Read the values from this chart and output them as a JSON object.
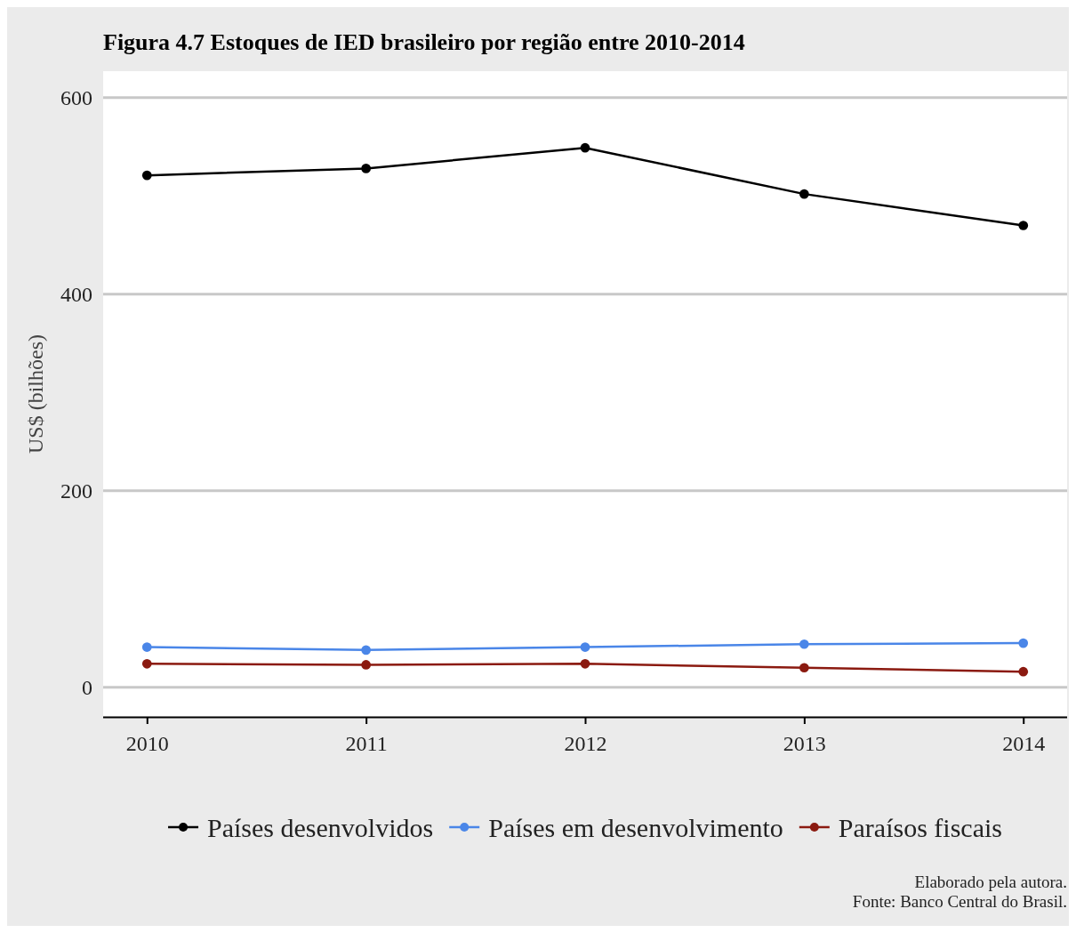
{
  "chart_data": {
    "type": "line",
    "title": "Figura 4.7 Estoques de IED brasileiro por região entre 2010-2014",
    "ylabel": "US$ (bilhões)",
    "categories": [
      "2010",
      "2011",
      "2012",
      "2013",
      "2014"
    ],
    "series": [
      {
        "name": "Países desenvolvidos",
        "color": "#000000",
        "values": [
          521,
          528,
          549,
          502,
          470
        ]
      },
      {
        "name": "Países em desenvolvimento",
        "color": "#4a86e8",
        "values": [
          41,
          38,
          41,
          44,
          45
        ]
      },
      {
        "name": "Paraísos fiscais",
        "color": "#8b1a10",
        "values": [
          24,
          23,
          24,
          20,
          16
        ]
      }
    ],
    "ylim": [
      -30,
      627
    ],
    "yticks": [
      0,
      200,
      400,
      600
    ],
    "grid": "y",
    "legend": "bottom",
    "marker": "circle",
    "line_style": "solid",
    "annotations": [
      "Elaborado pela autora.",
      "Fonte: Banco Central do Brasil."
    ]
  }
}
